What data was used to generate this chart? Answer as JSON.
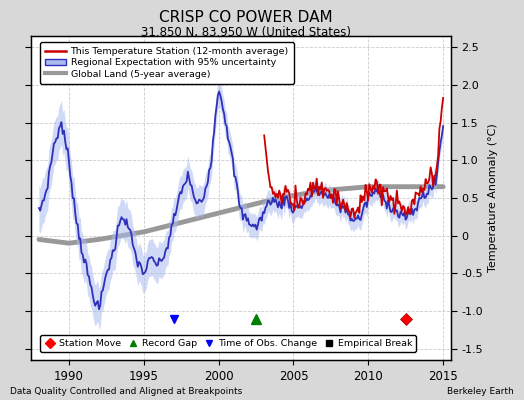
{
  "title": "CRISP CO POWER DAM",
  "subtitle": "31.850 N, 83.950 W (United States)",
  "ylabel": "Temperature Anomaly (°C)",
  "footer_left": "Data Quality Controlled and Aligned at Breakpoints",
  "footer_right": "Berkeley Earth",
  "xlim": [
    1987.5,
    2015.5
  ],
  "ylim": [
    -1.65,
    2.65
  ],
  "yticks": [
    -1.5,
    -1.0,
    -0.5,
    0.0,
    0.5,
    1.0,
    1.5,
    2.0,
    2.5
  ],
  "xticks": [
    1990,
    1995,
    2000,
    2005,
    2010,
    2015
  ],
  "fig_bg_color": "#d8d8d8",
  "plot_bg_color": "#ffffff",
  "station_move_x": 2012.5,
  "station_move_y": -1.1,
  "record_gap_x": 2002.5,
  "record_gap_y": -1.1,
  "time_obs_x": [
    1997.0
  ],
  "time_obs_y": [
    -1.1
  ],
  "legend_line_red": "#cc0000",
  "legend_line_blue": "#3030bb",
  "legend_fill_blue": "#aabbee",
  "legend_line_gray": "#999999",
  "grid_color": "#cccccc",
  "grid_style": "--"
}
